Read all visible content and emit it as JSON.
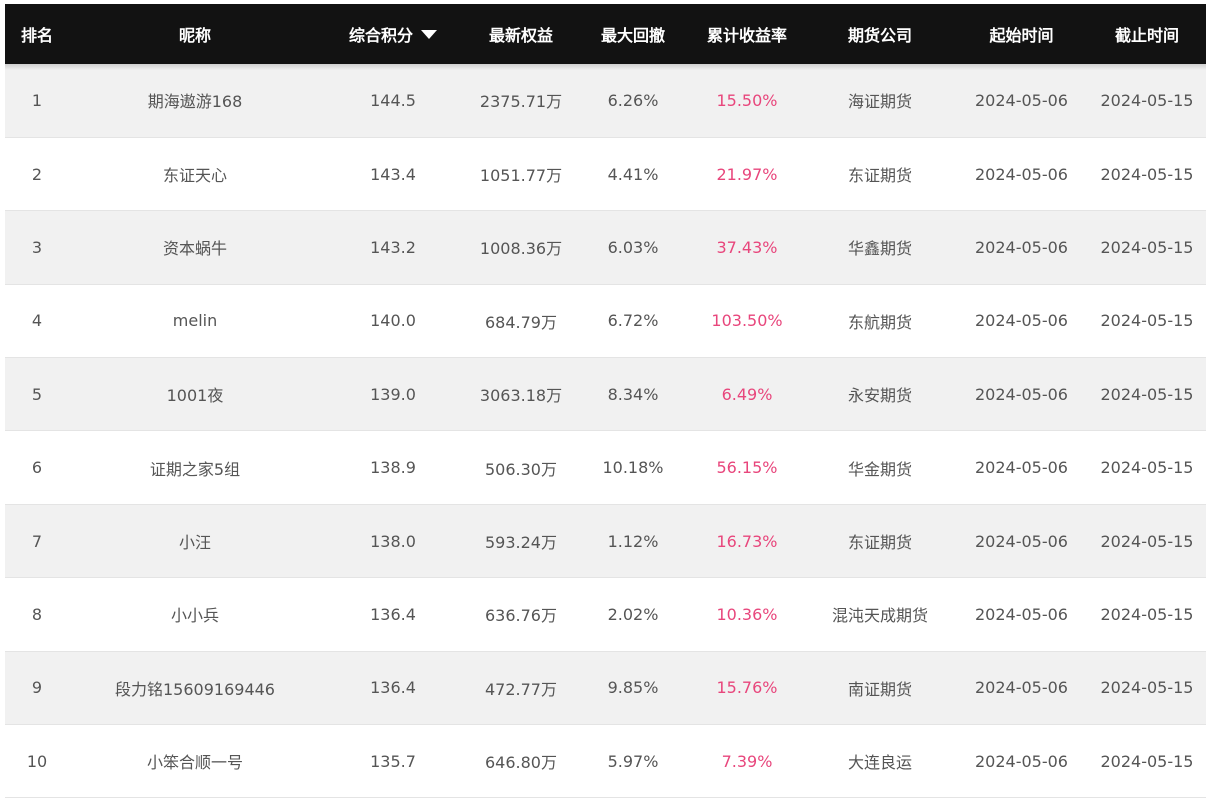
{
  "table": {
    "headers": {
      "rank": "排名",
      "nickname": "昵称",
      "score": "综合积分",
      "equity": "最新权益",
      "drawdown": "最大回撤",
      "return": "累计收益率",
      "company": "期货公司",
      "start": "起始时间",
      "end": "截止时间"
    },
    "sort": {
      "column": "综合积分",
      "direction": "descending"
    },
    "colors": {
      "header_bg": "#121212",
      "return_text": "#e8467c",
      "odd_row_bg": "#f1f1f1"
    },
    "rows": [
      {
        "rank": "1",
        "nickname": "期海遨游168",
        "score": "144.5",
        "equity": "2375.71万",
        "drawdown": "6.26%",
        "return": "15.50%",
        "company": "海证期货",
        "start": "2024-05-06",
        "end": "2024-05-15"
      },
      {
        "rank": "2",
        "nickname": "东证天心",
        "score": "143.4",
        "equity": "1051.77万",
        "drawdown": "4.41%",
        "return": "21.97%",
        "company": "东证期货",
        "start": "2024-05-06",
        "end": "2024-05-15"
      },
      {
        "rank": "3",
        "nickname": "资本蜗牛",
        "score": "143.2",
        "equity": "1008.36万",
        "drawdown": "6.03%",
        "return": "37.43%",
        "company": "华鑫期货",
        "start": "2024-05-06",
        "end": "2024-05-15"
      },
      {
        "rank": "4",
        "nickname": "melin",
        "score": "140.0",
        "equity": "684.79万",
        "drawdown": "6.72%",
        "return": "103.50%",
        "company": "东航期货",
        "start": "2024-05-06",
        "end": "2024-05-15"
      },
      {
        "rank": "5",
        "nickname": "1001夜",
        "score": "139.0",
        "equity": "3063.18万",
        "drawdown": "8.34%",
        "return": "6.49%",
        "company": "永安期货",
        "start": "2024-05-06",
        "end": "2024-05-15"
      },
      {
        "rank": "6",
        "nickname": "证期之家5组",
        "score": "138.9",
        "equity": "506.30万",
        "drawdown": "10.18%",
        "return": "56.15%",
        "company": "华金期货",
        "start": "2024-05-06",
        "end": "2024-05-15"
      },
      {
        "rank": "7",
        "nickname": "小汪",
        "score": "138.0",
        "equity": "593.24万",
        "drawdown": "1.12%",
        "return": "16.73%",
        "company": "东证期货",
        "start": "2024-05-06",
        "end": "2024-05-15"
      },
      {
        "rank": "8",
        "nickname": "小小兵",
        "score": "136.4",
        "equity": "636.76万",
        "drawdown": "2.02%",
        "return": "10.36%",
        "company": "混沌天成期货",
        "start": "2024-05-06",
        "end": "2024-05-15"
      },
      {
        "rank": "9",
        "nickname": "段力铭15609169446",
        "score": "136.4",
        "equity": "472.77万",
        "drawdown": "9.85%",
        "return": "15.76%",
        "company": "南证期货",
        "start": "2024-05-06",
        "end": "2024-05-15"
      },
      {
        "rank": "10",
        "nickname": "小笨合顺一号",
        "score": "135.7",
        "equity": "646.80万",
        "drawdown": "5.97%",
        "return": "7.39%",
        "company": "大连良运",
        "start": "2024-05-06",
        "end": "2024-05-15"
      }
    ]
  }
}
